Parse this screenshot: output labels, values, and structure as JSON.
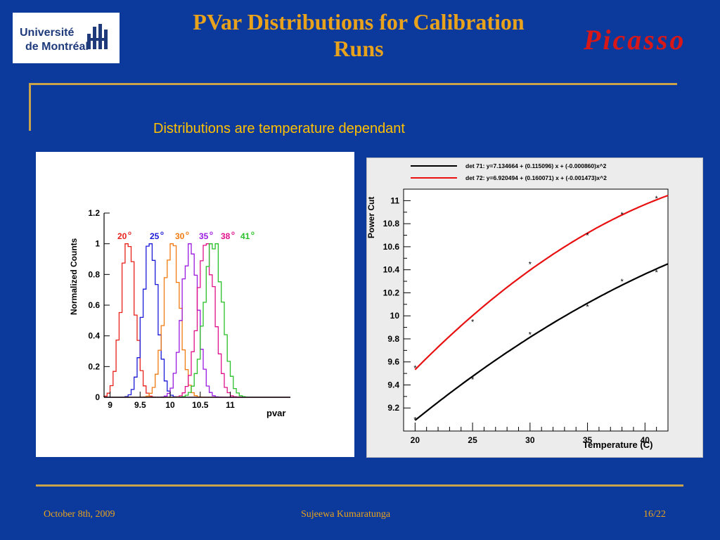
{
  "header": {
    "title_line1": "PVar Distributions for Calibration",
    "title_line2": "Runs",
    "logo_left_line1": "Université",
    "logo_left_line2": "de Montréal",
    "logo_right": "Picasso"
  },
  "subtitle": "Distributions are temperature dependant",
  "footer": {
    "date": "October 8th, 2009",
    "author": "Sujeewa Kumaratunga",
    "page": "16/22"
  },
  "colors": {
    "background": "#0c3a9c",
    "title": "#e8a21c",
    "subtitle": "#ffc000",
    "rule": "#c9a24a"
  },
  "chart_data": [
    {
      "type": "line",
      "ylabel": "Normalized Counts",
      "xlabel": "pvar",
      "xlim": [
        8.9,
        12.0
      ],
      "ylim": [
        0,
        1.2
      ],
      "xticks": [
        "9",
        "9.5",
        "10",
        "10.5",
        "11"
      ],
      "yticks": [
        "0",
        "0.2",
        "0.4",
        "0.6",
        "0.8",
        "1",
        "1.2"
      ],
      "annotations": [
        {
          "text": "20",
          "sup": "o",
          "color": "#e8201a"
        },
        {
          "text": "25",
          "sup": "o",
          "color": "#1a1ad8"
        },
        {
          "text": "30",
          "sup": "o",
          "color": "#f07a10"
        },
        {
          "text": "35",
          "sup": "o",
          "color": "#9a1ae0"
        },
        {
          "text": "38",
          "sup": "o",
          "color": "#e0108a"
        },
        {
          "text": "41",
          "sup": "o",
          "color": "#28c028"
        }
      ],
      "series": [
        {
          "color": "#e8201a",
          "center": 9.3,
          "sigma": 0.12
        },
        {
          "color": "#1a1ad8",
          "center": 9.67,
          "sigma": 0.12
        },
        {
          "color": "#f07a10",
          "center": 10.03,
          "sigma": 0.13
        },
        {
          "color": "#9a1ae0",
          "center": 10.33,
          "sigma": 0.13
        },
        {
          "color": "#e0108a",
          "center": 10.6,
          "sigma": 0.14
        },
        {
          "color": "#28c028",
          "center": 10.72,
          "sigma": 0.15
        }
      ]
    },
    {
      "type": "scatter",
      "xlabel": "Temperature (C)",
      "ylabel": "Power Cut",
      "xlim": [
        19,
        42
      ],
      "ylim": [
        9.0,
        11.1
      ],
      "xticks": [
        "20",
        "25",
        "30",
        "35",
        "40"
      ],
      "yticks": [
        "9.2",
        "9.4",
        "9.6",
        "9.8",
        "10",
        "10.2",
        "10.4",
        "10.6",
        "10.8",
        "11"
      ],
      "legend": [
        {
          "label": "det 71: y=7.134664 + (0.115096) x + (-0.000860)x^2",
          "color": "#000000"
        },
        {
          "label": "det 72: y=6.920494 + (0.160071) x + (-0.001473)x^2",
          "color": "#e81010"
        }
      ],
      "series": [
        {
          "color": "#000000",
          "coef": [
            7.134664,
            0.115096,
            -0.00086
          ],
          "x": [
            20,
            25,
            30,
            35,
            38,
            41
          ],
          "y": [
            9.1,
            9.45,
            9.84,
            10.08,
            10.3,
            10.38
          ]
        },
        {
          "color": "#e81010",
          "coef": [
            6.920494,
            0.160071,
            -0.001473
          ],
          "x": [
            20,
            25,
            30,
            35,
            38,
            41
          ],
          "y": [
            9.55,
            9.95,
            10.45,
            10.7,
            10.88,
            11.02
          ]
        }
      ]
    }
  ]
}
